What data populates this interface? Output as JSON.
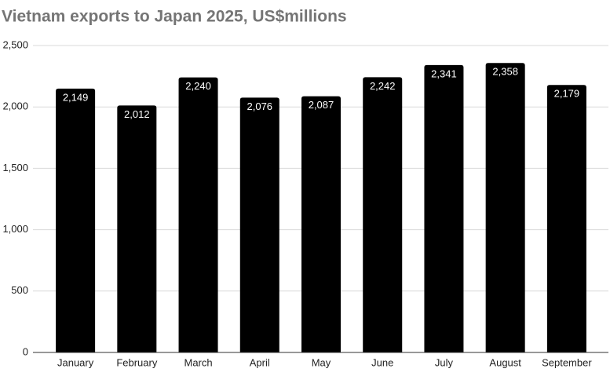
{
  "chart_data": {
    "type": "bar",
    "title": "Vietnam exports to Japan 2025, US$millions",
    "categories": [
      "January",
      "February",
      "March",
      "April",
      "May",
      "June",
      "July",
      "August",
      "September"
    ],
    "values": [
      2149,
      2012,
      2240,
      2076,
      2087,
      2242,
      2341,
      2358,
      2179
    ],
    "value_labels": [
      "2,149",
      "2,012",
      "2,240",
      "2,076",
      "2,087",
      "2,242",
      "2,341",
      "2,358",
      "2,179"
    ],
    "color": "#000000",
    "ylim": [
      0,
      2500
    ],
    "yticks": [
      0,
      500,
      {
        "value": 1000,
        "label": "1,000"
      },
      {
        "value": 1500,
        "label": "1,500"
      },
      {
        "value": 2000,
        "label": "2,000"
      },
      {
        "value": 2500,
        "label": "2,500"
      }
    ],
    "grid": true
  }
}
